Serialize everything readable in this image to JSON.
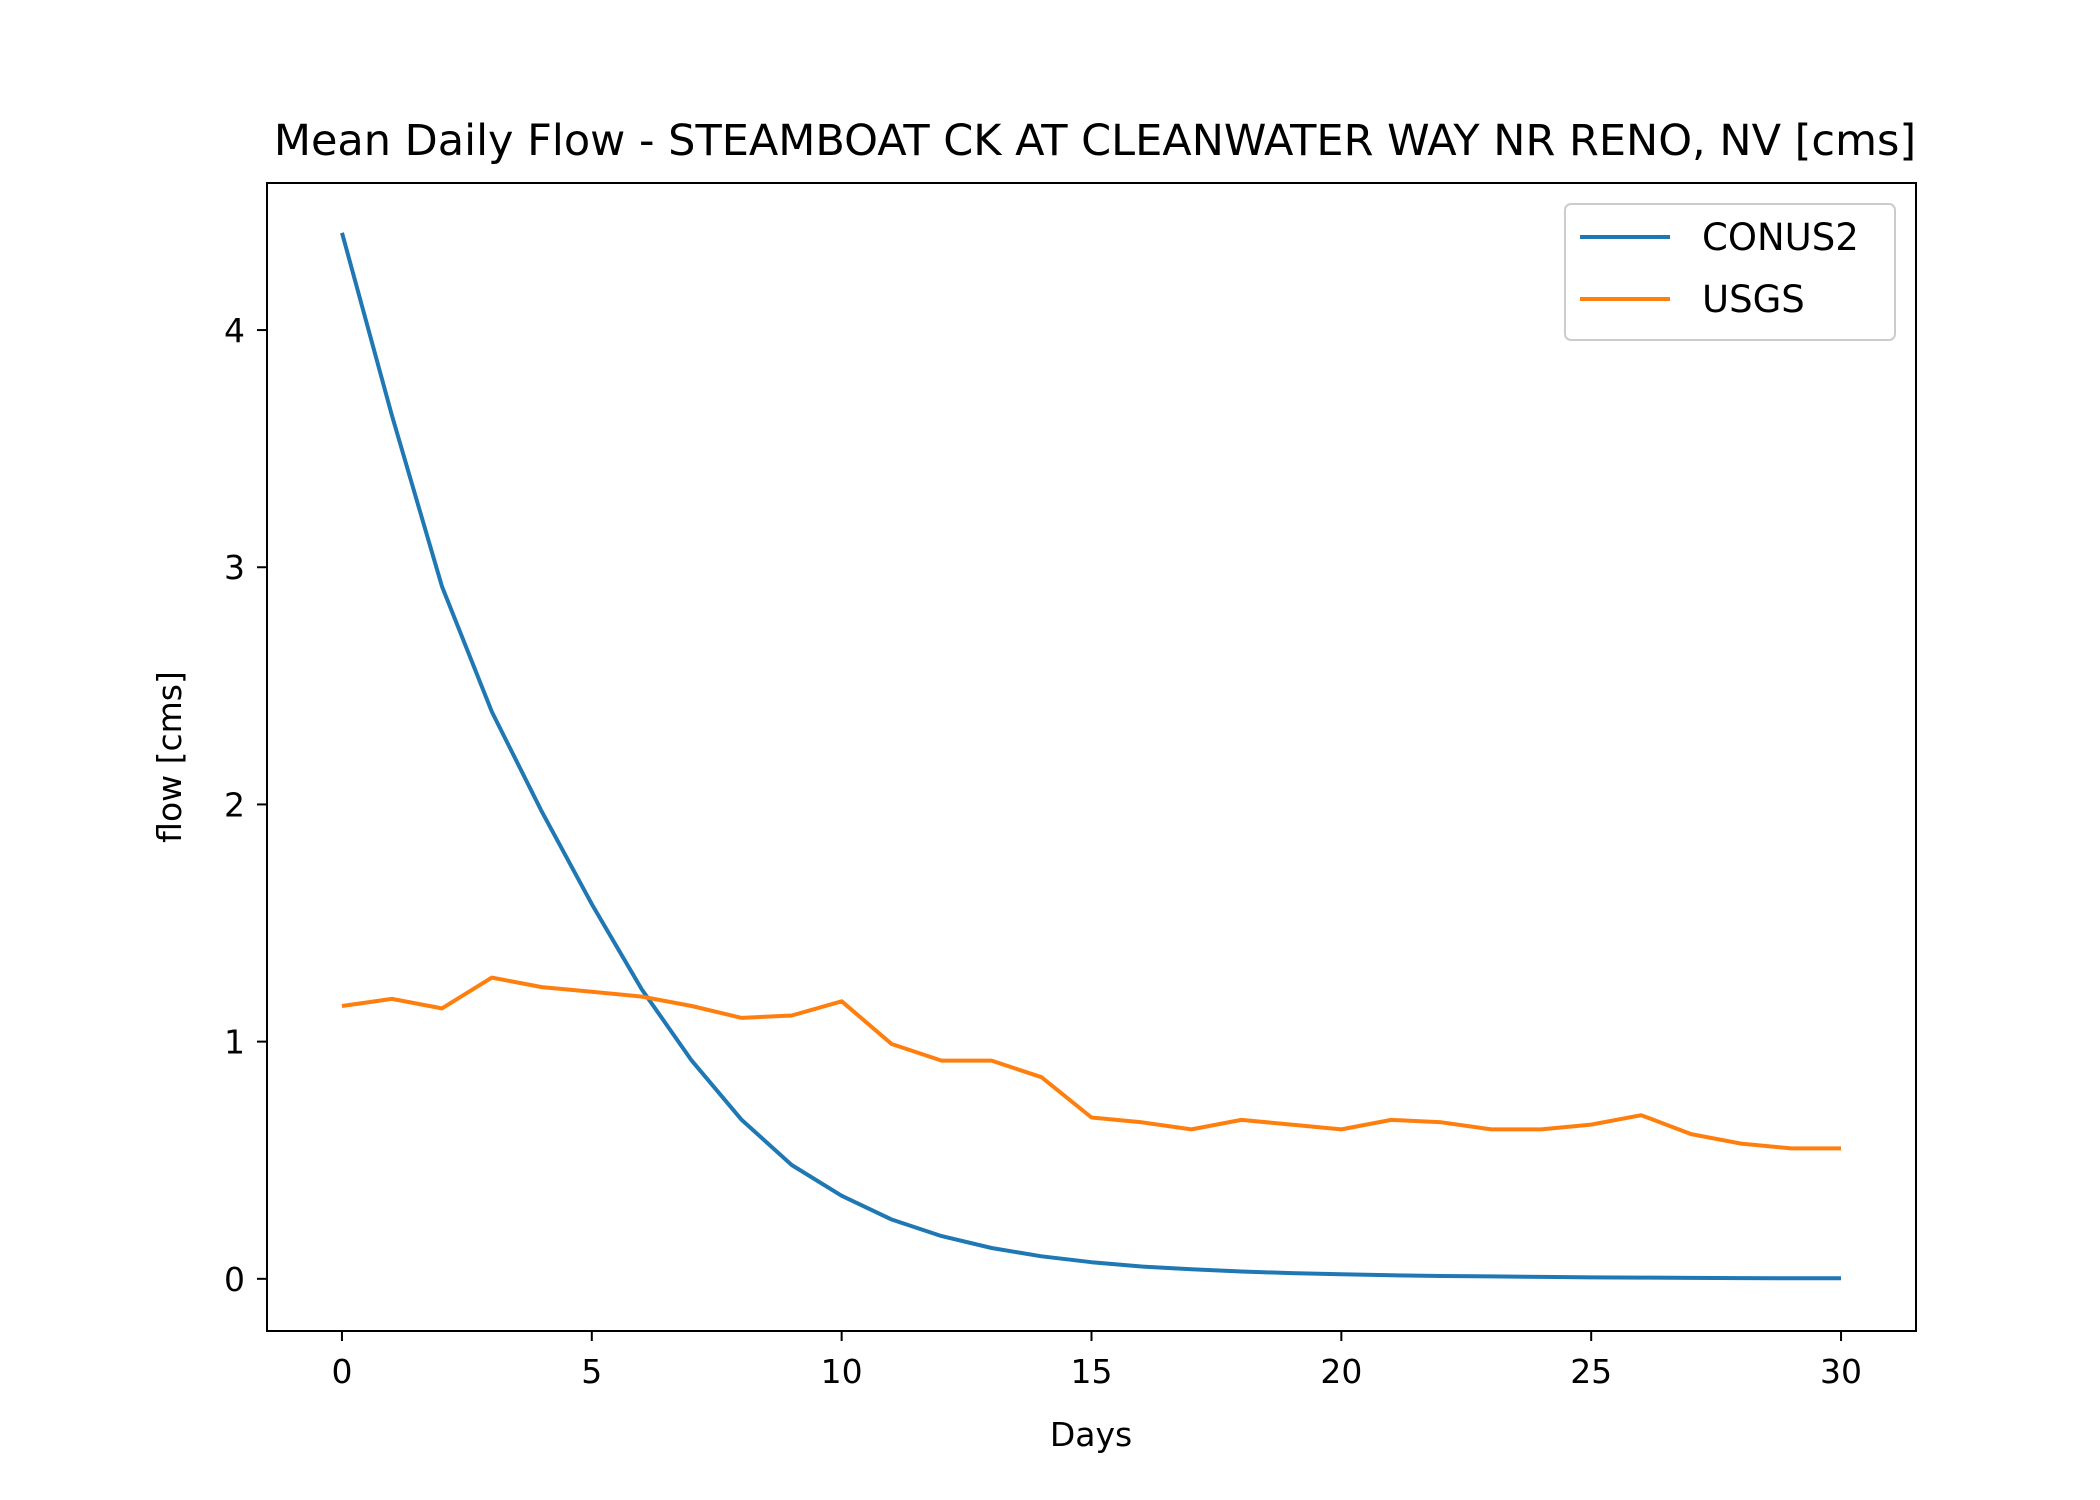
{
  "chart_data": {
    "type": "line",
    "title": "Mean Daily Flow - STEAMBOAT CK AT CLEANWATER WAY NR RENO, NV [cms]",
    "xlabel": "Days",
    "ylabel": "flow [cms]",
    "xlim": [
      -1.5,
      31.5
    ],
    "ylim": [
      -0.22,
      4.62
    ],
    "xticks": [
      0,
      5,
      10,
      15,
      20,
      25,
      30
    ],
    "yticks": [
      0,
      1,
      2,
      3,
      4
    ],
    "grid": false,
    "legend_position": "top-right",
    "x": [
      0,
      1,
      2,
      3,
      4,
      5,
      6,
      7,
      8,
      9,
      10,
      11,
      12,
      13,
      14,
      15,
      16,
      17,
      18,
      19,
      20,
      21,
      22,
      23,
      24,
      25,
      26,
      27,
      28,
      29,
      30
    ],
    "series": [
      {
        "name": "CONUS2",
        "color": "#1f77b4",
        "values": [
          4.41,
          3.64,
          2.92,
          2.39,
          1.97,
          1.58,
          1.22,
          0.92,
          0.67,
          0.48,
          0.35,
          0.25,
          0.18,
          0.13,
          0.095,
          0.07,
          0.052,
          0.04,
          0.031,
          0.024,
          0.019,
          0.015,
          0.012,
          0.01,
          0.008,
          0.006,
          0.005,
          0.004,
          0.003,
          0.002,
          0.002
        ]
      },
      {
        "name": "USGS",
        "color": "#ff7f0e",
        "values": [
          1.15,
          1.18,
          1.14,
          1.27,
          1.23,
          1.21,
          1.19,
          1.15,
          1.1,
          1.11,
          1.17,
          0.99,
          0.92,
          0.92,
          0.85,
          0.68,
          0.66,
          0.63,
          0.67,
          0.65,
          0.63,
          0.67,
          0.66,
          0.63,
          0.63,
          0.65,
          0.69,
          0.61,
          0.57,
          0.55,
          0.55
        ]
      }
    ]
  }
}
